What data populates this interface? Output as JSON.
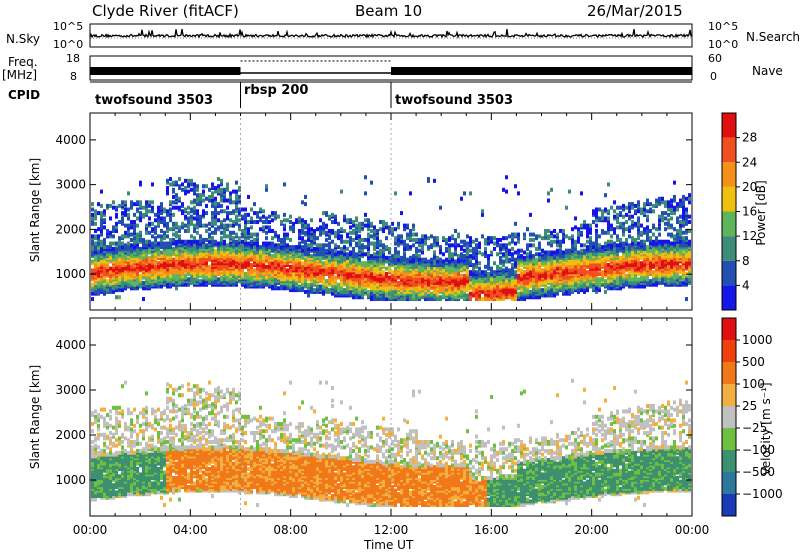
{
  "header": {
    "station": "Clyde River (fitACF)",
    "beam": "Beam 10",
    "date": "26/Mar/2015"
  },
  "left_labels": {
    "nsky": "N.Sky",
    "freq": "Freq.",
    "freq_unit": "[MHz]",
    "cpid": "CPID"
  },
  "right_labels": {
    "nsearch": "N.Search",
    "nave": "Nave"
  },
  "nsky_axis": {
    "top": "10^5",
    "bottom": "10^0"
  },
  "freq_axis": {
    "top": "18",
    "bottom": "8"
  },
  "nave_axis": {
    "top": "60",
    "bottom": "0"
  },
  "cpid_segments": [
    {
      "label": "twofsound 3503",
      "start_hour": 0,
      "end_hour": 6
    },
    {
      "label": "rbsp 200",
      "start_hour": 6,
      "end_hour": 12
    },
    {
      "label": "twofsound 3503",
      "start_hour": 12,
      "end_hour": 24
    }
  ],
  "x_axis": {
    "label": "Time UT",
    "ticks": [
      "00:00",
      "04:00",
      "08:00",
      "12:00",
      "16:00",
      "20:00",
      "00:00"
    ],
    "range_hours": [
      0,
      24
    ]
  },
  "chart_data": [
    {
      "type": "heatmap",
      "ylabel": "Slant Range [km]",
      "y_ticks": [
        "1000",
        "2000",
        "3000",
        "4000"
      ],
      "ylim": [
        200,
        4600
      ],
      "colorbar": {
        "label": "Power [dB]",
        "ticks": [
          "4",
          "8",
          "12",
          "16",
          "20",
          "24",
          "28"
        ],
        "colors": [
          "#1515e8",
          "#2250b0",
          "#3c8c78",
          "#5fb55a",
          "#f0c010",
          "#f5901a",
          "#f05020",
          "#e01010"
        ]
      }
    },
    {
      "type": "heatmap",
      "ylabel": "Slant Range [km]",
      "y_ticks": [
        "1000",
        "2000",
        "3000",
        "4000"
      ],
      "ylim": [
        200,
        4600
      ],
      "colorbar": {
        "label": "Velocity [m s⁻¹]",
        "ticks": [
          "1000",
          "500",
          "100",
          "25",
          "−25",
          "−100",
          "−500",
          "−1000"
        ],
        "colors": [
          "#1a3ab8",
          "#2e78a0",
          "#3c9070",
          "#6fc040",
          "#c0c0c0",
          "#f2b040",
          "#f07818",
          "#f04010",
          "#e01010"
        ]
      }
    }
  ]
}
